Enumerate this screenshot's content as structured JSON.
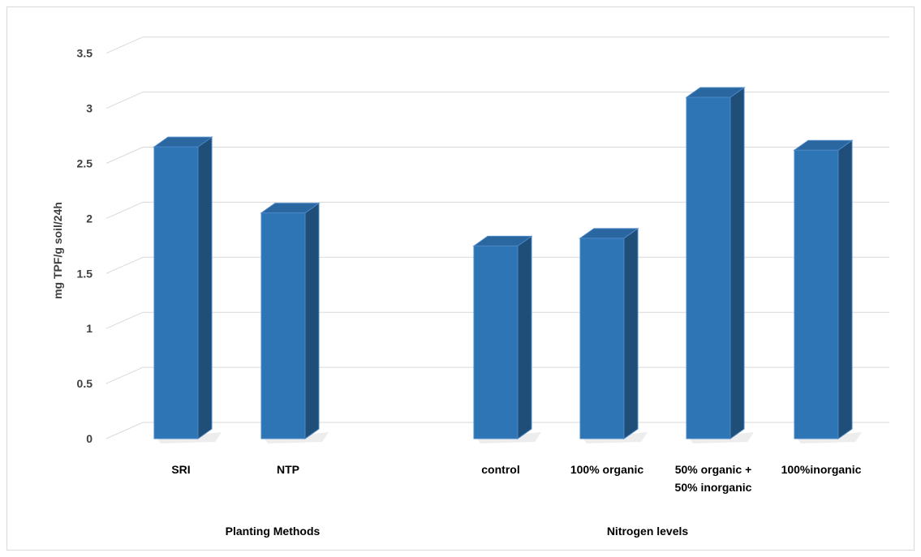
{
  "chart_data": {
    "type": "bar",
    "title": "",
    "ylabel": "mg TPF/g soil/24h",
    "ylim": [
      0,
      3.5
    ],
    "yticks": [
      "0",
      "0.5",
      "1",
      "1.5",
      "2",
      "2.5",
      "3",
      "3.5"
    ],
    "grid": true,
    "bar_color": "#2e75b6",
    "bar_side_color": "#1f4e79",
    "bar_top_color": "#2a66a0",
    "groups": [
      {
        "label": "Planting Methods",
        "categories": [
          [
            "SRI"
          ],
          [
            "NTP"
          ]
        ],
        "values": [
          2.65,
          2.05
        ]
      },
      {
        "label": "Nitrogen levels",
        "categories": [
          [
            "control"
          ],
          [
            "100% organic"
          ],
          [
            "50% organic +",
            "50% inorganic"
          ],
          [
            "100%inorganic"
          ]
        ],
        "values": [
          1.75,
          1.82,
          3.1,
          2.62
        ]
      }
    ]
  }
}
